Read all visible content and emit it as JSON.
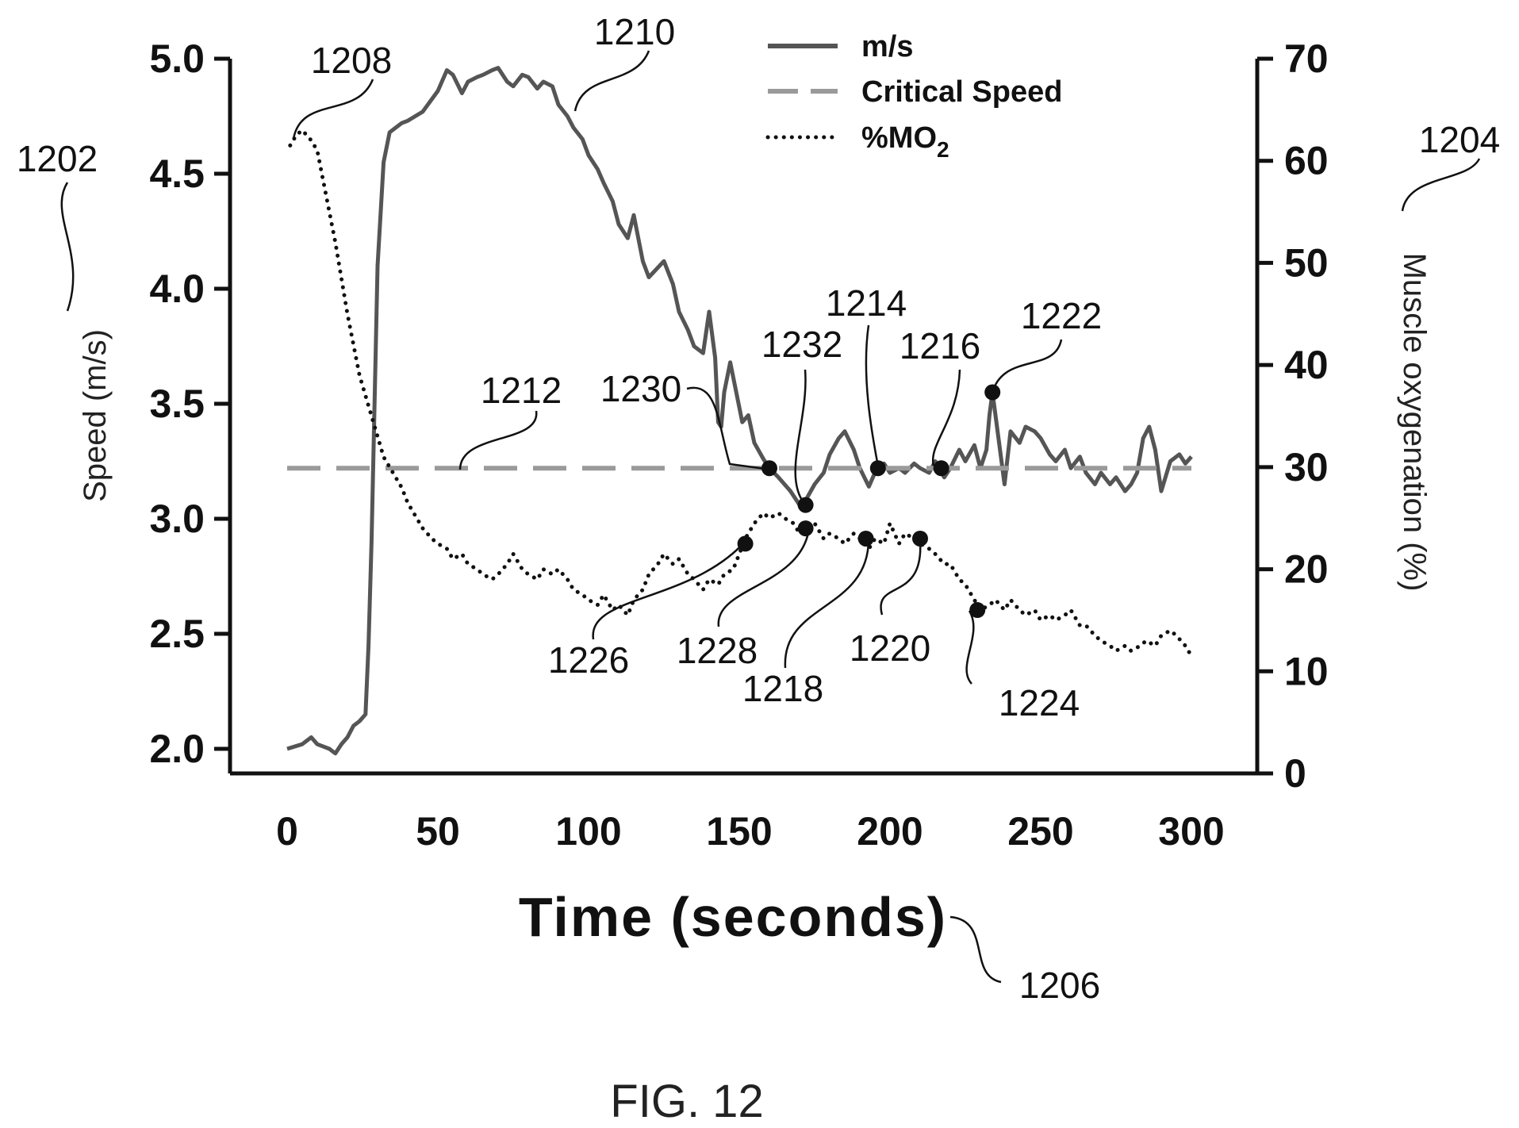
{
  "figure_caption": "FIG. 12",
  "chart_data": {
    "type": "line",
    "xlabel": "Time (seconds)",
    "ylabel_left": "Speed (m/s)",
    "ylabel_right": "Muscle oxygenation (%)",
    "xlim": [
      0,
      300
    ],
    "ylim_left": [
      2.0,
      5.0
    ],
    "ylim_right": [
      0,
      70
    ],
    "x_ticks": [
      "0",
      "50",
      "100",
      "150",
      "200",
      "250",
      "300"
    ],
    "y_left_ticks": [
      "2.0",
      "2.5",
      "3.0",
      "3.5",
      "4.0",
      "4.5",
      "5.0"
    ],
    "y_right_ticks": [
      "0",
      "10",
      "20",
      "30",
      "40",
      "50",
      "60",
      "70"
    ],
    "grid": false,
    "legend_position": "top-center",
    "legend": [
      {
        "label": "m/s",
        "style": "solid",
        "color": "#555555"
      },
      {
        "label": "Critical Speed",
        "style": "dashed",
        "color": "#9a9a9a"
      },
      {
        "label_main": "%MO",
        "label_sub": "2",
        "style": "dotted",
        "color": "#111111"
      }
    ],
    "series": [
      {
        "name": "m/s",
        "axis": "left",
        "x": [
          0,
          5,
          8,
          10,
          14,
          16,
          18,
          20,
          22,
          24,
          26,
          27,
          28,
          29,
          30,
          32,
          34,
          36,
          38,
          40,
          45,
          50,
          53,
          55,
          58,
          60,
          63,
          65,
          68,
          70,
          73,
          75,
          78,
          80,
          83,
          85,
          88,
          90,
          93,
          95,
          98,
          100,
          103,
          105,
          108,
          110,
          113,
          115,
          118,
          120,
          125,
          128,
          130,
          133,
          135,
          138,
          140,
          142,
          143,
          144,
          145,
          147,
          149,
          151,
          153,
          155,
          158,
          160,
          163,
          165,
          167,
          170,
          172,
          175,
          178,
          180,
          183,
          185,
          188,
          190,
          193,
          195,
          198,
          200,
          203,
          205,
          208,
          210,
          213,
          215,
          218,
          220,
          223,
          225,
          228,
          230,
          232,
          233,
          234,
          236,
          238,
          240,
          243,
          245,
          248,
          250,
          253,
          255,
          258,
          260,
          263,
          265,
          268,
          270,
          273,
          275,
          278,
          280,
          282,
          284,
          286,
          288,
          290,
          293,
          296,
          298,
          300
        ],
        "values": [
          2.0,
          2.02,
          2.05,
          2.02,
          2.0,
          1.98,
          2.02,
          2.05,
          2.1,
          2.12,
          2.15,
          2.45,
          2.9,
          3.5,
          4.1,
          4.55,
          4.68,
          4.7,
          4.72,
          4.73,
          4.77,
          4.86,
          4.95,
          4.93,
          4.85,
          4.9,
          4.92,
          4.93,
          4.95,
          4.96,
          4.9,
          4.88,
          4.93,
          4.92,
          4.87,
          4.9,
          4.88,
          4.8,
          4.75,
          4.7,
          4.65,
          4.58,
          4.52,
          4.46,
          4.38,
          4.28,
          4.22,
          4.32,
          4.12,
          4.05,
          4.12,
          4.02,
          3.9,
          3.82,
          3.75,
          3.72,
          3.9,
          3.7,
          3.42,
          3.4,
          3.55,
          3.68,
          3.55,
          3.42,
          3.45,
          3.33,
          3.26,
          3.22,
          3.18,
          3.15,
          3.12,
          3.06,
          3.08,
          3.15,
          3.2,
          3.28,
          3.35,
          3.38,
          3.3,
          3.22,
          3.14,
          3.2,
          3.24,
          3.2,
          3.22,
          3.2,
          3.24,
          3.22,
          3.2,
          3.25,
          3.18,
          3.22,
          3.3,
          3.25,
          3.32,
          3.22,
          3.3,
          3.45,
          3.55,
          3.35,
          3.15,
          3.38,
          3.33,
          3.4,
          3.38,
          3.35,
          3.28,
          3.25,
          3.3,
          3.22,
          3.27,
          3.2,
          3.15,
          3.2,
          3.15,
          3.18,
          3.12,
          3.15,
          3.2,
          3.35,
          3.4,
          3.3,
          3.12,
          3.25,
          3.28,
          3.24,
          3.27
        ],
        "color": "#555555",
        "style": "solid"
      },
      {
        "name": "Critical Speed",
        "axis": "left",
        "x": [
          0,
          300
        ],
        "values": [
          3.22,
          3.22
        ],
        "color": "#9a9a9a",
        "style": "dashed"
      },
      {
        "name": "%MO2",
        "axis": "right",
        "x": [
          1,
          3,
          5,
          8,
          10,
          12,
          14,
          16,
          18,
          20,
          22,
          24,
          26,
          28,
          30,
          32,
          35,
          38,
          40,
          43,
          45,
          48,
          50,
          53,
          55,
          58,
          60,
          63,
          65,
          68,
          70,
          73,
          75,
          78,
          80,
          83,
          85,
          88,
          90,
          93,
          95,
          98,
          100,
          103,
          105,
          108,
          110,
          113,
          115,
          118,
          120,
          123,
          125,
          128,
          130,
          133,
          135,
          138,
          140,
          143,
          145,
          148,
          150,
          152,
          155,
          158,
          160,
          163,
          165,
          168,
          170,
          172,
          175,
          178,
          180,
          183,
          185,
          188,
          190,
          193,
          195,
          198,
          200,
          203,
          205,
          208,
          210,
          213,
          215,
          218,
          220,
          223,
          225,
          228,
          230,
          233,
          235,
          238,
          240,
          243,
          245,
          248,
          250,
          253,
          255,
          258,
          260,
          263,
          265,
          268,
          270,
          273,
          275,
          278,
          280,
          283,
          285,
          288,
          290,
          293,
          295,
          298,
          300
        ],
        "values": [
          61.5,
          62.5,
          63,
          62,
          61,
          58,
          55,
          52,
          48.5,
          45,
          42,
          39,
          37,
          35,
          33,
          31,
          29.5,
          28,
          26.5,
          25,
          24,
          23,
          22.5,
          22,
          21,
          21.5,
          20.5,
          20,
          19.5,
          19,
          19.5,
          20.5,
          21.5,
          20,
          19.5,
          19,
          20,
          19.5,
          20,
          19,
          18,
          17.5,
          17,
          16.5,
          17.5,
          16,
          16.5,
          15.5,
          17,
          18,
          19.5,
          20.5,
          21.5,
          20.5,
          21,
          19.5,
          19,
          18,
          19,
          18.5,
          19.5,
          20,
          21.5,
          23,
          24.5,
          25.5,
          25,
          25.5,
          25,
          24.5,
          23.5,
          24,
          24.5,
          23,
          23.5,
          23,
          22.5,
          23.5,
          23,
          22,
          23,
          22.5,
          24.5,
          22.5,
          23.5,
          23,
          22.5,
          22,
          21.5,
          20.5,
          20.5,
          19,
          18.5,
          17,
          16,
          16.5,
          17,
          16,
          17,
          16,
          15.5,
          16,
          15,
          15.5,
          15,
          15.5,
          16,
          14.5,
          14.5,
          13.5,
          13,
          12.5,
          12,
          12.5,
          12,
          12.5,
          13,
          12.5,
          13.5,
          14,
          13.5,
          12.5,
          11.5
        ],
        "color": "#111111",
        "style": "dotted"
      }
    ],
    "markers": [
      {
        "x": 160,
        "value": 3.22,
        "axis": "left"
      },
      {
        "x": 172,
        "value": 3.06,
        "axis": "left"
      },
      {
        "x": 196,
        "value": 3.22,
        "axis": "left"
      },
      {
        "x": 217,
        "value": 3.22,
        "axis": "left"
      },
      {
        "x": 234,
        "value": 3.55,
        "axis": "left"
      },
      {
        "x": 152,
        "value": 22.5,
        "axis": "right"
      },
      {
        "x": 172,
        "value": 24,
        "axis": "right"
      },
      {
        "x": 192,
        "value": 23,
        "axis": "right"
      },
      {
        "x": 210,
        "value": 23,
        "axis": "right"
      },
      {
        "x": 229,
        "value": 16,
        "axis": "right"
      }
    ],
    "reference_labels": [
      "1202",
      "1204",
      "1206",
      "1208",
      "1210",
      "1212",
      "1214",
      "1216",
      "1218",
      "1220",
      "1222",
      "1224",
      "1226",
      "1228",
      "1230",
      "1232"
    ]
  }
}
